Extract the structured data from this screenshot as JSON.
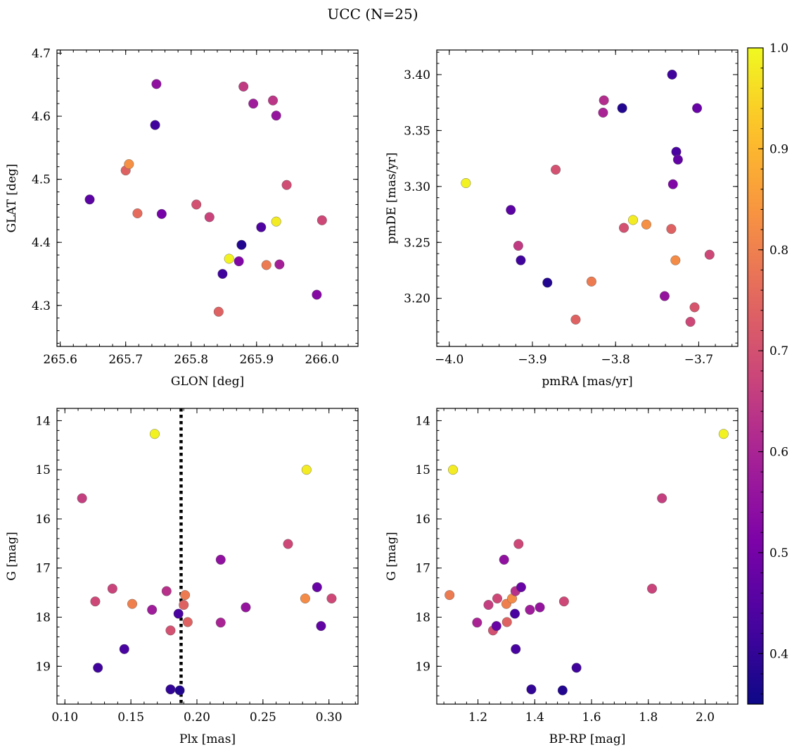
{
  "figure": {
    "title": "UCC (N=25)"
  },
  "colorbar": {
    "min": 0.35,
    "max": 1.0,
    "ticks": [
      0.4,
      0.5,
      0.6,
      0.7,
      0.8,
      0.9,
      1.0
    ],
    "tick_labels": [
      "0.4",
      "0.5",
      "0.6",
      "0.7",
      "0.8",
      "0.9",
      "1.0"
    ],
    "colormap": "plasma"
  },
  "chart_data": [
    {
      "type": "scatter",
      "panel": "top-left",
      "title": "",
      "xlabel": "GLON [deg]",
      "ylabel": "GLAT [deg]",
      "xlim": [
        265.595,
        266.055
      ],
      "ylim": [
        4.235,
        4.705
      ],
      "xticks": [
        265.6,
        265.7,
        265.8,
        265.9,
        266.0
      ],
      "xtick_labels": [
        "265.6",
        "265.7",
        "265.8",
        "265.9",
        "266.0"
      ],
      "yticks": [
        4.3,
        4.4,
        4.5,
        4.6,
        4.7
      ],
      "ytick_labels": [
        "4.3",
        "4.4",
        "4.5",
        "4.6",
        "4.7"
      ],
      "y_inverted": false,
      "points": [
        {
          "x": 265.645,
          "y": 4.468,
          "c": 0.46
        },
        {
          "x": 265.745,
          "y": 4.586,
          "c": 0.42
        },
        {
          "x": 265.747,
          "y": 4.651,
          "c": 0.55
        },
        {
          "x": 265.755,
          "y": 4.445,
          "c": 0.5
        },
        {
          "x": 265.7,
          "y": 4.514,
          "c": 0.74
        },
        {
          "x": 265.705,
          "y": 4.524,
          "c": 0.83
        },
        {
          "x": 265.718,
          "y": 4.446,
          "c": 0.76
        },
        {
          "x": 265.808,
          "y": 4.46,
          "c": 0.7
        },
        {
          "x": 265.828,
          "y": 4.44,
          "c": 0.67
        },
        {
          "x": 265.842,
          "y": 4.29,
          "c": 0.74
        },
        {
          "x": 265.848,
          "y": 4.35,
          "c": 0.42
        },
        {
          "x": 265.858,
          "y": 4.374,
          "c": 0.99
        },
        {
          "x": 265.873,
          "y": 4.37,
          "c": 0.52
        },
        {
          "x": 265.877,
          "y": 4.396,
          "c": 0.38
        },
        {
          "x": 265.88,
          "y": 4.647,
          "c": 0.65
        },
        {
          "x": 265.895,
          "y": 4.62,
          "c": 0.58
        },
        {
          "x": 265.907,
          "y": 4.424,
          "c": 0.44
        },
        {
          "x": 265.915,
          "y": 4.364,
          "c": 0.79
        },
        {
          "x": 265.925,
          "y": 4.625,
          "c": 0.64
        },
        {
          "x": 265.93,
          "y": 4.601,
          "c": 0.56
        },
        {
          "x": 265.93,
          "y": 4.433,
          "c": 0.98
        },
        {
          "x": 265.935,
          "y": 4.365,
          "c": 0.59
        },
        {
          "x": 265.946,
          "y": 4.491,
          "c": 0.69
        },
        {
          "x": 265.992,
          "y": 4.317,
          "c": 0.53
        },
        {
          "x": 266.0,
          "y": 4.435,
          "c": 0.68
        }
      ]
    },
    {
      "type": "scatter",
      "panel": "top-right",
      "title": "",
      "xlabel": "pmRA [mas/yr]",
      "ylabel": "pmDE [mas/yr]",
      "xlim": [
        -4.015,
        -3.653
      ],
      "ylim": [
        3.157,
        3.422
      ],
      "xticks": [
        -4.0,
        -3.9,
        -3.8,
        -3.7
      ],
      "xtick_labels": [
        "−4.0",
        "−3.9",
        "−3.8",
        "−3.7"
      ],
      "yticks": [
        3.2,
        3.25,
        3.3,
        3.35,
        3.4
      ],
      "ytick_labels": [
        "3.20",
        "3.25",
        "3.30",
        "3.35",
        "3.40"
      ],
      "y_inverted": false,
      "points": [
        {
          "x": -3.98,
          "y": 3.303,
          "c": 0.99
        },
        {
          "x": -3.926,
          "y": 3.279,
          "c": 0.46
        },
        {
          "x": -3.917,
          "y": 3.247,
          "c": 0.65
        },
        {
          "x": -3.914,
          "y": 3.234,
          "c": 0.42
        },
        {
          "x": -3.882,
          "y": 3.214,
          "c": 0.38
        },
        {
          "x": -3.872,
          "y": 3.315,
          "c": 0.7
        },
        {
          "x": -3.848,
          "y": 3.181,
          "c": 0.74
        },
        {
          "x": -3.829,
          "y": 3.215,
          "c": 0.79
        },
        {
          "x": -3.815,
          "y": 3.366,
          "c": 0.6
        },
        {
          "x": -3.814,
          "y": 3.377,
          "c": 0.62
        },
        {
          "x": -3.792,
          "y": 3.37,
          "c": 0.38
        },
        {
          "x": -3.79,
          "y": 3.263,
          "c": 0.7
        },
        {
          "x": -3.779,
          "y": 3.27,
          "c": 0.98
        },
        {
          "x": -3.763,
          "y": 3.266,
          "c": 0.83
        },
        {
          "x": -3.741,
          "y": 3.202,
          "c": 0.56
        },
        {
          "x": -3.733,
          "y": 3.262,
          "c": 0.74
        },
        {
          "x": -3.732,
          "y": 3.4,
          "c": 0.42
        },
        {
          "x": -3.731,
          "y": 3.302,
          "c": 0.52
        },
        {
          "x": -3.728,
          "y": 3.234,
          "c": 0.82
        },
        {
          "x": -3.727,
          "y": 3.331,
          "c": 0.43
        },
        {
          "x": -3.725,
          "y": 3.324,
          "c": 0.47
        },
        {
          "x": -3.71,
          "y": 3.179,
          "c": 0.68
        },
        {
          "x": -3.705,
          "y": 3.192,
          "c": 0.71
        },
        {
          "x": -3.702,
          "y": 3.37,
          "c": 0.48
        },
        {
          "x": -3.687,
          "y": 3.239,
          "c": 0.68
        }
      ]
    },
    {
      "type": "scatter",
      "panel": "bottom-left",
      "title": "",
      "xlabel": "Plx [mas]",
      "ylabel": "G [mag]",
      "xlim": [
        0.094,
        0.322
      ],
      "ylim": [
        13.75,
        19.77
      ],
      "xticks": [
        0.1,
        0.15,
        0.2,
        0.25,
        0.3
      ],
      "xtick_labels": [
        "0.10",
        "0.15",
        "0.20",
        "0.25",
        "0.30"
      ],
      "yticks": [
        14,
        15,
        16,
        17,
        18,
        19
      ],
      "ytick_labels": [
        "14",
        "15",
        "16",
        "17",
        "18",
        "19"
      ],
      "y_inverted": true,
      "vline": 0.188,
      "points": [
        {
          "x": 0.113,
          "y": 15.58,
          "c": 0.66
        },
        {
          "x": 0.123,
          "y": 17.68,
          "c": 0.68
        },
        {
          "x": 0.125,
          "y": 19.03,
          "c": 0.42
        },
        {
          "x": 0.136,
          "y": 17.42,
          "c": 0.67
        },
        {
          "x": 0.145,
          "y": 18.65,
          "c": 0.43
        },
        {
          "x": 0.151,
          "y": 17.73,
          "c": 0.8
        },
        {
          "x": 0.166,
          "y": 17.85,
          "c": 0.58
        },
        {
          "x": 0.168,
          "y": 14.27,
          "c": 0.99
        },
        {
          "x": 0.177,
          "y": 17.47,
          "c": 0.63
        },
        {
          "x": 0.18,
          "y": 18.27,
          "c": 0.7
        },
        {
          "x": 0.18,
          "y": 19.47,
          "c": 0.4
        },
        {
          "x": 0.186,
          "y": 17.93,
          "c": 0.43
        },
        {
          "x": 0.187,
          "y": 19.49,
          "c": 0.38
        },
        {
          "x": 0.19,
          "y": 17.75,
          "c": 0.74
        },
        {
          "x": 0.191,
          "y": 17.55,
          "c": 0.79
        },
        {
          "x": 0.193,
          "y": 18.1,
          "c": 0.74
        },
        {
          "x": 0.218,
          "y": 16.83,
          "c": 0.55
        },
        {
          "x": 0.218,
          "y": 18.11,
          "c": 0.6
        },
        {
          "x": 0.237,
          "y": 17.8,
          "c": 0.56
        },
        {
          "x": 0.269,
          "y": 16.51,
          "c": 0.68
        },
        {
          "x": 0.282,
          "y": 17.62,
          "c": 0.82
        },
        {
          "x": 0.283,
          "y": 15.0,
          "c": 0.98
        },
        {
          "x": 0.291,
          "y": 17.39,
          "c": 0.48
        },
        {
          "x": 0.294,
          "y": 18.18,
          "c": 0.47
        },
        {
          "x": 0.302,
          "y": 17.62,
          "c": 0.68
        }
      ]
    },
    {
      "type": "scatter",
      "panel": "bottom-right",
      "title": "",
      "xlabel": "BP-RP [mag]",
      "ylabel": "G [mag]",
      "xlim": [
        1.055,
        2.115
      ],
      "ylim": [
        13.75,
        19.77
      ],
      "xticks": [
        1.2,
        1.4,
        1.6,
        1.8,
        2.0
      ],
      "xtick_labels": [
        "1.2",
        "1.4",
        "1.6",
        "1.8",
        "2.0"
      ],
      "yticks": [
        14,
        15,
        16,
        17,
        18,
        19
      ],
      "ytick_labels": [
        "14",
        "15",
        "16",
        "17",
        "18",
        "19"
      ],
      "y_inverted": true,
      "points": [
        {
          "x": 1.1,
          "y": 17.55,
          "c": 0.79
        },
        {
          "x": 1.112,
          "y": 15.0,
          "c": 0.98
        },
        {
          "x": 1.197,
          "y": 18.11,
          "c": 0.6
        },
        {
          "x": 1.237,
          "y": 17.75,
          "c": 0.66
        },
        {
          "x": 1.253,
          "y": 18.27,
          "c": 0.7
        },
        {
          "x": 1.265,
          "y": 18.18,
          "c": 0.48
        },
        {
          "x": 1.268,
          "y": 17.62,
          "c": 0.68
        },
        {
          "x": 1.292,
          "y": 16.83,
          "c": 0.55
        },
        {
          "x": 1.3,
          "y": 17.73,
          "c": 0.8
        },
        {
          "x": 1.302,
          "y": 18.1,
          "c": 0.74
        },
        {
          "x": 1.32,
          "y": 17.62,
          "c": 0.82
        },
        {
          "x": 1.33,
          "y": 17.93,
          "c": 0.43
        },
        {
          "x": 1.332,
          "y": 17.47,
          "c": 0.63
        },
        {
          "x": 1.333,
          "y": 18.65,
          "c": 0.43
        },
        {
          "x": 1.343,
          "y": 16.51,
          "c": 0.68
        },
        {
          "x": 1.352,
          "y": 17.39,
          "c": 0.48
        },
        {
          "x": 1.383,
          "y": 17.85,
          "c": 0.58
        },
        {
          "x": 1.388,
          "y": 19.47,
          "c": 0.4
        },
        {
          "x": 1.418,
          "y": 17.8,
          "c": 0.56
        },
        {
          "x": 1.498,
          "y": 19.49,
          "c": 0.38
        },
        {
          "x": 1.503,
          "y": 17.68,
          "c": 0.68
        },
        {
          "x": 1.547,
          "y": 19.03,
          "c": 0.42
        },
        {
          "x": 1.813,
          "y": 17.42,
          "c": 0.67
        },
        {
          "x": 1.848,
          "y": 15.58,
          "c": 0.66
        },
        {
          "x": 2.065,
          "y": 14.27,
          "c": 0.99
        }
      ]
    }
  ]
}
